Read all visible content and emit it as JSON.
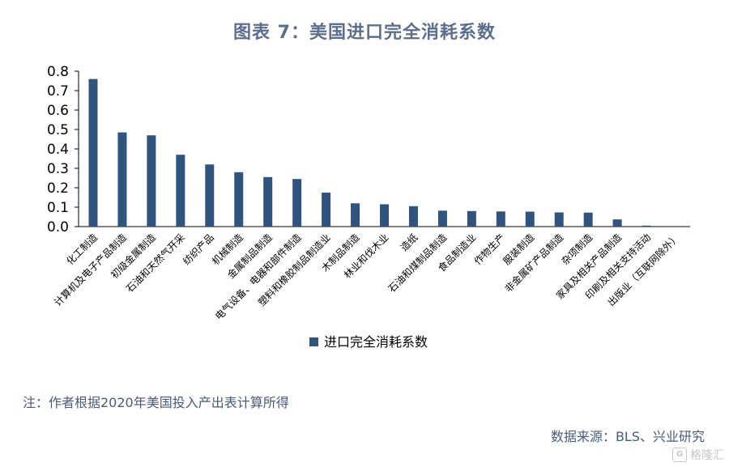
{
  "chart_data": {
    "type": "bar",
    "title": "图表 7：美国进口完全消耗系数",
    "legend_label": "进口完全消耗系数",
    "legend_position": "bottom",
    "bar_color": "#2f5480",
    "ylim": [
      0,
      0.8
    ],
    "yticks": [
      "0.0",
      "0.1",
      "0.2",
      "0.3",
      "0.4",
      "0.5",
      "0.6",
      "0.7",
      "0.8"
    ],
    "grid": false,
    "categories": [
      "化工制造",
      "计算机及电子产品制造",
      "初级金属制造",
      "石油和天然气开采",
      "纺织产品",
      "机械制造",
      "金属制品制造",
      "电气设备、电器和部件制造",
      "塑料和橡胶制品制造业",
      "木制品制造",
      "林业和伐木业",
      "造纸",
      "石油和煤制品制造",
      "食品制造业",
      "作物生产",
      "服装制造",
      "非金属矿产品制造",
      "杂项制造",
      "家具及相关产品制造",
      "印刷及相关支持活动",
      "出版业（互联网除外）"
    ],
    "values": [
      0.76,
      0.485,
      0.47,
      0.37,
      0.32,
      0.28,
      0.255,
      0.245,
      0.175,
      0.12,
      0.115,
      0.105,
      0.082,
      0.08,
      0.078,
      0.077,
      0.073,
      0.072,
      0.037,
      0.005,
      0.0
    ]
  },
  "note": "注：作者根据2020年美国投入产出表计算所得",
  "source": "数据来源：BLS、兴业研究",
  "watermark": "格隆汇"
}
